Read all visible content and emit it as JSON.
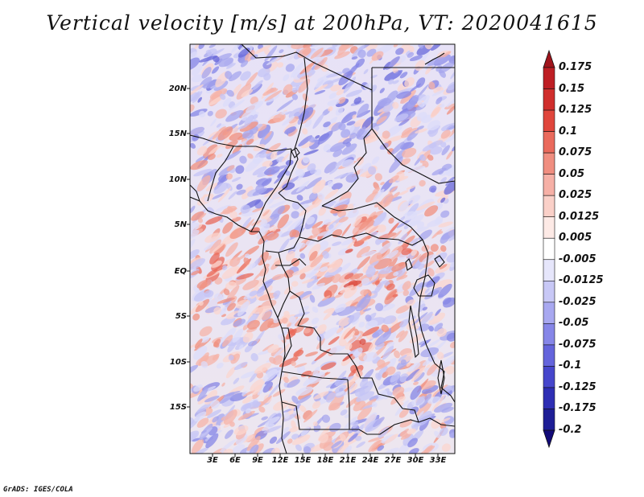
{
  "title": "Vertical velocity [m/s] at 200hPa, VT: 2020041615",
  "credit": "GrADS: IGES/COLA",
  "latitude_labels": [
    "20N",
    "15N",
    "10N",
    "5N",
    "EQ",
    "5S",
    "10S",
    "15S"
  ],
  "longitude_labels": [
    "3E",
    "6E",
    "9E",
    "12E",
    "15E",
    "18E",
    "21E",
    "24E",
    "27E",
    "30E",
    "33E"
  ],
  "colorbar": {
    "levels": [
      "0.175",
      "0.15",
      "0.125",
      "0.1",
      "0.075",
      "0.05",
      "0.025",
      "0.0125",
      "0.005",
      "-0.005",
      "-0.0125",
      "-0.025",
      "-0.05",
      "-0.075",
      "-0.1",
      "-0.125",
      "-0.175",
      "-0.2"
    ],
    "colors": [
      "#a0141c",
      "#be1e24",
      "#d02e2c",
      "#e0463c",
      "#ea6a5c",
      "#f08e80",
      "#f6b0a6",
      "#fad0c8",
      "#fdeae6",
      "#ffffff",
      "#e6e6fb",
      "#c8c8f6",
      "#a8a8f0",
      "#8686e8",
      "#6464dc",
      "#4646cc",
      "#2e2eb4",
      "#1e1e96",
      "#120a78"
    ]
  }
}
